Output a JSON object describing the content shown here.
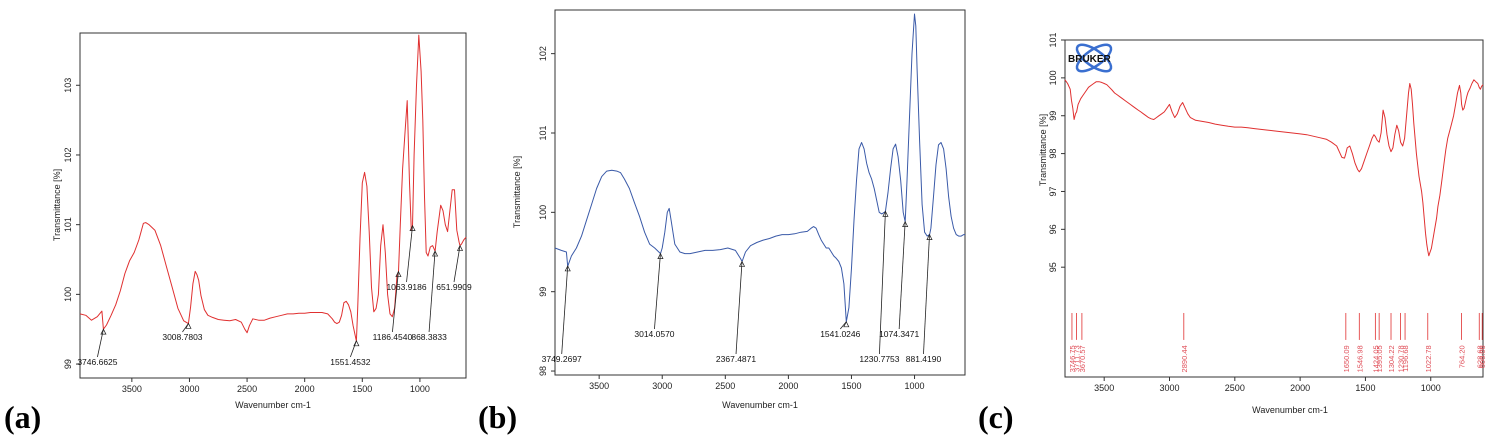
{
  "chart_data": [
    {
      "type": "line",
      "panel": "(a)",
      "xlabel": "Wavenumber cm-1",
      "ylabel": "Transmittance [%]",
      "x_reversed": true,
      "xlim": [
        600,
        3950
      ],
      "ylim": [
        98.8,
        103.75
      ],
      "xticks": [
        3500,
        3000,
        2500,
        2000,
        1500,
        1000
      ],
      "yticks": [
        99,
        100,
        101,
        102,
        103
      ],
      "color": "#e03030",
      "series": [
        {
          "x": [
            3950,
            3900,
            3850,
            3800,
            3760,
            3747,
            3720,
            3680,
            3640,
            3600,
            3560,
            3520,
            3480,
            3440,
            3420,
            3400,
            3380,
            3350,
            3300,
            3250,
            3200,
            3150,
            3100,
            3050,
            3009,
            2990,
            2970,
            2950,
            2935,
            2920,
            2900,
            2870,
            2840,
            2800,
            2750,
            2700,
            2650,
            2600,
            2550,
            2520,
            2500,
            2480,
            2450,
            2400,
            2350,
            2300,
            2250,
            2200,
            2150,
            2100,
            2050,
            2000,
            1950,
            1900,
            1850,
            1800,
            1760,
            1740,
            1720,
            1700,
            1680,
            1660,
            1640,
            1620,
            1600,
            1580,
            1551,
            1540,
            1520,
            1500,
            1480,
            1460,
            1440,
            1420,
            1400,
            1380,
            1360,
            1340,
            1320,
            1300,
            1280,
            1260,
            1240,
            1220,
            1200,
            1186,
            1170,
            1150,
            1130,
            1110,
            1090,
            1075,
            1064,
            1050,
            1030,
            1010,
            990,
            975,
            960,
            945,
            930,
            910,
            890,
            868,
            850,
            820,
            800,
            780,
            760,
            740,
            720,
            700,
            680,
            660,
            652,
            640,
            620,
            600
          ],
          "y": [
            99.72,
            99.7,
            99.63,
            99.68,
            99.76,
            99.5,
            99.56,
            99.7,
            99.85,
            100.05,
            100.3,
            100.48,
            100.6,
            100.78,
            100.9,
            101.02,
            101.03,
            101.0,
            100.92,
            100.7,
            100.4,
            100.1,
            99.8,
            99.62,
            99.58,
            99.82,
            100.15,
            100.33,
            100.28,
            100.2,
            99.98,
            99.78,
            99.7,
            99.67,
            99.64,
            99.63,
            99.62,
            99.64,
            99.6,
            99.5,
            99.45,
            99.55,
            99.65,
            99.63,
            99.63,
            99.66,
            99.68,
            99.7,
            99.72,
            99.72,
            99.73,
            99.73,
            99.74,
            99.74,
            99.74,
            99.72,
            99.65,
            99.6,
            99.58,
            99.6,
            99.7,
            99.88,
            99.9,
            99.85,
            99.75,
            99.55,
            99.33,
            99.8,
            100.8,
            101.6,
            101.75,
            101.55,
            100.9,
            100.1,
            99.75,
            99.8,
            100.0,
            100.7,
            101.0,
            100.6,
            100.0,
            99.72,
            99.68,
            99.8,
            100.25,
            100.33,
            101.0,
            101.8,
            102.3,
            102.78,
            101.6,
            100.92,
            100.98,
            102.0,
            103.0,
            103.72,
            103.2,
            102.5,
            101.4,
            100.6,
            100.55,
            100.68,
            100.7,
            100.62,
            100.9,
            101.28,
            101.2,
            101.0,
            100.9,
            101.2,
            101.5,
            101.5,
            100.92,
            100.75,
            100.7,
            100.72,
            100.78,
            100.82
          ]
        }
      ],
      "annotations": [
        {
          "label": "3746.6625",
          "x": 3746.6625
        },
        {
          "label": "3008.7803",
          "x": 3008.7803
        },
        {
          "label": "1551.4532",
          "x": 1551.4532
        },
        {
          "label": "1186.4540",
          "x": 1186.454
        },
        {
          "label": "1063.9186",
          "x": 1063.9186
        },
        {
          "label": "868.3833",
          "x": 868.3833
        },
        {
          "label": "651.9909",
          "x": 651.9909
        }
      ]
    },
    {
      "type": "line",
      "panel": "(b)",
      "xlabel": "Wavenumber cm-1",
      "ylabel": "Transmittance [%]",
      "x_reversed": true,
      "xlim": [
        600,
        3850
      ],
      "ylim": [
        97.95,
        102.55
      ],
      "xticks": [
        3500,
        3000,
        2500,
        2000,
        1500,
        1000
      ],
      "yticks": [
        98,
        99,
        100,
        101,
        102
      ],
      "color": "#3a5aa8",
      "series": [
        {
          "x": [
            3850,
            3800,
            3760,
            3749,
            3720,
            3680,
            3640,
            3600,
            3560,
            3520,
            3480,
            3440,
            3400,
            3360,
            3330,
            3300,
            3260,
            3220,
            3180,
            3140,
            3100,
            3060,
            3014,
            3000,
            2980,
            2960,
            2945,
            2930,
            2900,
            2860,
            2820,
            2780,
            2720,
            2660,
            2600,
            2540,
            2480,
            2420,
            2380,
            2367,
            2340,
            2300,
            2250,
            2200,
            2150,
            2100,
            2050,
            2000,
            1950,
            1900,
            1850,
            1820,
            1800,
            1780,
            1760,
            1740,
            1720,
            1700,
            1680,
            1660,
            1640,
            1620,
            1600,
            1580,
            1560,
            1541,
            1520,
            1500,
            1480,
            1460,
            1440,
            1420,
            1400,
            1380,
            1360,
            1340,
            1320,
            1300,
            1280,
            1260,
            1240,
            1231,
            1210,
            1190,
            1170,
            1150,
            1130,
            1110,
            1090,
            1074,
            1060,
            1040,
            1020,
            1000,
            990,
            980,
            960,
            940,
            920,
            900,
            881,
            870,
            850,
            830,
            810,
            790,
            770,
            750,
            730,
            710,
            690,
            670,
            650,
            630,
            610,
            600
          ],
          "y": [
            99.55,
            99.52,
            99.5,
            99.32,
            99.45,
            99.55,
            99.7,
            99.9,
            100.1,
            100.3,
            100.45,
            100.52,
            100.53,
            100.52,
            100.5,
            100.42,
            100.3,
            100.12,
            99.95,
            99.75,
            99.6,
            99.55,
            99.48,
            99.55,
            99.75,
            100.0,
            100.05,
            99.9,
            99.6,
            99.5,
            99.48,
            99.48,
            99.5,
            99.52,
            99.52,
            99.53,
            99.55,
            99.52,
            99.42,
            99.38,
            99.5,
            99.58,
            99.62,
            99.65,
            99.67,
            99.7,
            99.72,
            99.72,
            99.73,
            99.75,
            99.76,
            99.8,
            99.82,
            99.8,
            99.72,
            99.65,
            99.6,
            99.55,
            99.55,
            99.5,
            99.45,
            99.42,
            99.38,
            99.3,
            99.1,
            98.62,
            98.8,
            99.3,
            99.9,
            100.4,
            100.8,
            100.88,
            100.8,
            100.62,
            100.5,
            100.42,
            100.3,
            100.15,
            100.0,
            99.98,
            100.0,
            100.01,
            100.25,
            100.55,
            100.8,
            100.86,
            100.7,
            100.4,
            100.0,
            99.88,
            100.4,
            101.2,
            102.0,
            102.5,
            102.35,
            101.8,
            100.9,
            100.1,
            99.75,
            99.7,
            99.72,
            99.8,
            100.2,
            100.6,
            100.85,
            100.88,
            100.8,
            100.55,
            100.2,
            99.95,
            99.8,
            99.72,
            99.7,
            99.7,
            99.72,
            99.72
          ]
        }
      ],
      "annotations": [
        {
          "label": "3749.2697",
          "x": 3749.2697
        },
        {
          "label": "3014.0570",
          "x": 3014.057
        },
        {
          "label": "2367.4871",
          "x": 2367.4871
        },
        {
          "label": "1541.0246",
          "x": 1541.0246
        },
        {
          "label": "1230.7753",
          "x": 1230.7753
        },
        {
          "label": "1074.3471",
          "x": 1074.3471
        },
        {
          "label": "881.4190",
          "x": 881.419
        }
      ]
    },
    {
      "type": "line",
      "panel": "(c)",
      "xlabel": "Wavenumber cm-1",
      "ylabel": "Transmittance [%]",
      "x_reversed": true,
      "xlim": [
        600,
        3800
      ],
      "ylim": [
        92.1,
        101.0
      ],
      "xticks": [
        3500,
        3000,
        2500,
        2000,
        1500,
        1000
      ],
      "yticks": [
        95,
        96,
        97,
        98,
        99,
        100,
        101
      ],
      "color": "#e03030",
      "logo_text": "BRUKER",
      "series": [
        {
          "x": [
            3800,
            3780,
            3760,
            3750,
            3740,
            3730,
            3720,
            3711,
            3700,
            3680,
            3660,
            3640,
            3620,
            3600,
            3580,
            3560,
            3540,
            3520,
            3500,
            3480,
            3460,
            3440,
            3420,
            3400,
            3380,
            3360,
            3340,
            3320,
            3300,
            3280,
            3260,
            3240,
            3220,
            3200,
            3180,
            3160,
            3140,
            3120,
            3100,
            3080,
            3060,
            3040,
            3020,
            3000,
            2980,
            2960,
            2940,
            2920,
            2900,
            2880,
            2860,
            2840,
            2800,
            2750,
            2700,
            2650,
            2600,
            2550,
            2500,
            2450,
            2400,
            2350,
            2300,
            2250,
            2200,
            2150,
            2100,
            2050,
            2000,
            1950,
            1900,
            1850,
            1800,
            1760,
            1720,
            1700,
            1680,
            1660,
            1650,
            1640,
            1620,
            1600,
            1580,
            1560,
            1547,
            1530,
            1510,
            1490,
            1470,
            1450,
            1435,
            1424,
            1410,
            1395,
            1380,
            1365,
            1350,
            1335,
            1320,
            1304,
            1290,
            1275,
            1260,
            1245,
            1231,
            1215,
            1200,
            1190,
            1180,
            1170,
            1160,
            1150,
            1140,
            1130,
            1120,
            1110,
            1100,
            1090,
            1080,
            1070,
            1060,
            1050,
            1040,
            1030,
            1023,
            1015,
            1005,
            995,
            985,
            975,
            965,
            955,
            945,
            930,
            915,
            900,
            885,
            870,
            855,
            840,
            825,
            810,
            795,
            780,
            770,
            764,
            755,
            745,
            735,
            725,
            715,
            700,
            685,
            670,
            655,
            640,
            629,
            620,
            610,
            600
          ],
          "y": [
            99.95,
            99.85,
            99.7,
            99.4,
            99.2,
            98.9,
            99.05,
            99.1,
            99.3,
            99.45,
            99.55,
            99.65,
            99.75,
            99.8,
            99.85,
            99.9,
            99.9,
            99.88,
            99.85,
            99.82,
            99.75,
            99.68,
            99.6,
            99.55,
            99.5,
            99.45,
            99.4,
            99.35,
            99.3,
            99.25,
            99.2,
            99.15,
            99.1,
            99.05,
            99.0,
            98.95,
            98.92,
            98.9,
            98.95,
            99.0,
            99.05,
            99.1,
            99.2,
            99.3,
            99.1,
            98.95,
            99.05,
            99.25,
            99.35,
            99.2,
            99.05,
            98.95,
            98.88,
            98.85,
            98.82,
            98.78,
            98.75,
            98.72,
            98.7,
            98.7,
            98.68,
            98.66,
            98.64,
            98.62,
            98.6,
            98.58,
            98.56,
            98.54,
            98.52,
            98.5,
            98.46,
            98.42,
            98.38,
            98.3,
            98.2,
            98.05,
            97.9,
            97.88,
            98.0,
            98.15,
            98.2,
            98.0,
            97.75,
            97.58,
            97.52,
            97.6,
            97.8,
            98.0,
            98.2,
            98.4,
            98.5,
            98.45,
            98.35,
            98.3,
            98.55,
            99.15,
            98.95,
            98.5,
            98.2,
            98.05,
            98.15,
            98.5,
            98.75,
            98.6,
            98.3,
            98.2,
            98.4,
            98.8,
            99.2,
            99.6,
            99.85,
            99.7,
            99.3,
            98.8,
            98.4,
            98.0,
            97.7,
            97.4,
            97.2,
            97.0,
            96.7,
            96.3,
            95.9,
            95.6,
            95.45,
            95.3,
            95.4,
            95.5,
            95.7,
            95.9,
            96.1,
            96.3,
            96.6,
            96.9,
            97.3,
            97.7,
            98.1,
            98.4,
            98.6,
            98.8,
            99.0,
            99.3,
            99.6,
            99.8,
            99.6,
            99.3,
            99.15,
            99.2,
            99.35,
            99.5,
            99.62,
            99.72,
            99.85,
            99.95,
            99.9,
            99.85,
            99.75,
            99.7,
            99.78,
            99.82
          ]
        }
      ],
      "annotations": [
        {
          "label": "3746.75",
          "x": 3746.75
        },
        {
          "label": "3711.73",
          "x": 3711.73
        },
        {
          "label": "3670.57",
          "x": 3670.57
        },
        {
          "label": "2890.44",
          "x": 2890.44
        },
        {
          "label": "1650.09",
          "x": 1650.09
        },
        {
          "label": "1546.98",
          "x": 1546.98
        },
        {
          "label": "1424.05",
          "x": 1424.05
        },
        {
          "label": "1395.05",
          "x": 1395.05
        },
        {
          "label": "1304.22",
          "x": 1304.22
        },
        {
          "label": "1230.78",
          "x": 1230.78
        },
        {
          "label": "1196.68",
          "x": 1196.68
        },
        {
          "label": "1022.78",
          "x": 1022.78
        },
        {
          "label": "764.20",
          "x": 764.2
        },
        {
          "label": "628.68",
          "x": 628.68
        },
        {
          "label": "606.06",
          "x": 606.06
        }
      ]
    }
  ]
}
